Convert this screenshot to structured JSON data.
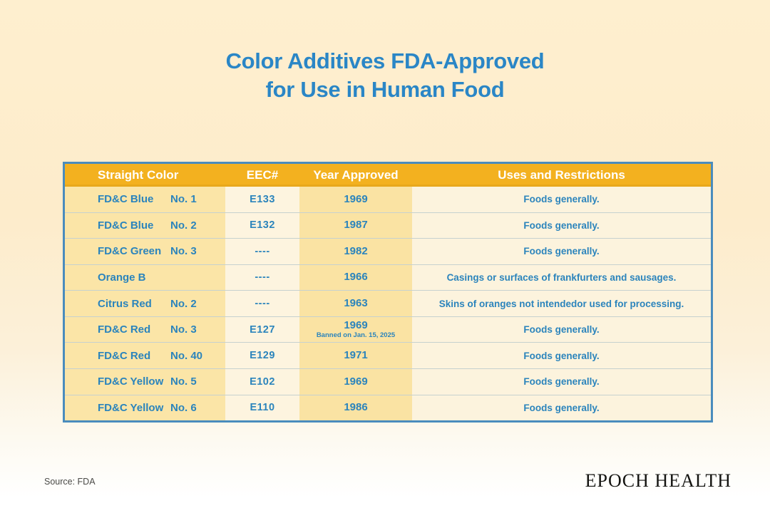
{
  "title": {
    "line1": "Color Additives FDA-Approved",
    "line2": "for Use in Human Food"
  },
  "chart_data": {
    "type": "table",
    "title": "Color Additives FDA-Approved for Use in Human Food",
    "columns": [
      "Straight Color",
      "EEC#",
      "Year Approved",
      "Uses and Restrictions"
    ],
    "rows": [
      [
        "FD&C Blue No. 1",
        "E133",
        "1969",
        "Foods generally."
      ],
      [
        "FD&C Blue No. 2",
        "E132",
        "1987",
        "Foods generally."
      ],
      [
        "FD&C Green No. 3",
        "----",
        "1982",
        "Foods generally."
      ],
      [
        "Orange B",
        "----",
        "1966",
        "Casings or surfaces of frankfurters and sausages."
      ],
      [
        "Citrus Red No. 2",
        "----",
        "1963",
        "Skins of oranges not intendedor used for processing."
      ],
      [
        "FD&C Red No. 3",
        "E127",
        "1969 Banned on Jan. 15, 2025",
        "Foods generally."
      ],
      [
        "FD&C Red No. 40",
        "E129",
        "1971",
        "Foods generally."
      ],
      [
        "FD&C Yellow No. 5",
        "E102",
        "1969",
        "Foods generally."
      ],
      [
        "FD&C Yellow No. 6",
        "E110",
        "1986",
        "Foods generally."
      ]
    ]
  },
  "table": {
    "headers": [
      "Straight Color",
      "EEC#",
      "Year Approved",
      "Uses and Restrictions"
    ],
    "rows": [
      {
        "color": "FD&C Blue",
        "number": "No. 1",
        "eec": "E133",
        "year": "1969",
        "note": "",
        "uses": "Foods generally."
      },
      {
        "color": "FD&C Blue",
        "number": "No. 2",
        "eec": "E132",
        "year": "1987",
        "note": "",
        "uses": "Foods generally."
      },
      {
        "color": "FD&C Green",
        "number": "No. 3",
        "eec": "----",
        "year": "1982",
        "note": "",
        "uses": "Foods generally."
      },
      {
        "color": "Orange B",
        "number": "",
        "eec": "----",
        "year": "1966",
        "note": "",
        "uses": "Casings or surfaces of frankfurters and sausages."
      },
      {
        "color": "Citrus Red",
        "number": "No. 2",
        "eec": "----",
        "year": "1963",
        "note": "",
        "uses": "Skins of oranges not intendedor used for processing."
      },
      {
        "color": "FD&C Red",
        "number": "No. 3",
        "eec": "E127",
        "year": "1969",
        "note": "Banned on Jan. 15, 2025",
        "uses": "Foods generally."
      },
      {
        "color": "FD&C Red",
        "number": "No. 40",
        "eec": "E129",
        "year": "1971",
        "note": "",
        "uses": "Foods generally."
      },
      {
        "color": "FD&C Yellow",
        "number": "No. 5",
        "eec": "E102",
        "year": "1969",
        "note": "",
        "uses": "Foods generally."
      },
      {
        "color": "FD&C Yellow",
        "number": "No. 6",
        "eec": "E110",
        "year": "1986",
        "note": "",
        "uses": "Foods generally."
      }
    ]
  },
  "footer": {
    "source": "Source: FDA",
    "brand": "EPOCH HEALTH"
  },
  "colors": {
    "background_top": "#feefcf",
    "background_bottom": "#ffffff",
    "header_bg": "#f3b11f",
    "cream_column": "#fbe5a7",
    "light_column": "#fdf4df",
    "year_column": "#fae3a3",
    "uses_column": "#fcf3dd",
    "text_blue": "#2b84bc",
    "title_blue": "#2a86c6",
    "table_border": "#4a8cbd",
    "row_divider": "#c6d1cf",
    "source_text": "#4a4a47",
    "brand_text": "#131310"
  }
}
